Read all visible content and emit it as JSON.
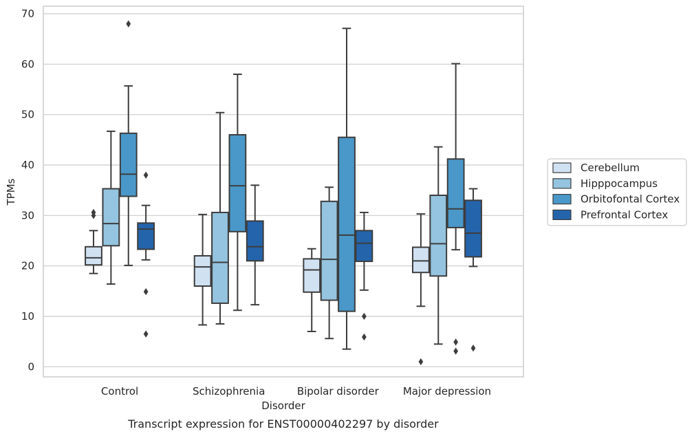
{
  "chart_data": {
    "type": "boxplot",
    "xlabel": "Disorder",
    "ylabel": "TPMs",
    "caption": "Transcript expression for ENST00000402297 by disorder",
    "ylim": [
      -2,
      71.5
    ],
    "yticks": [
      0,
      10,
      20,
      30,
      40,
      50,
      60,
      70
    ],
    "grid": "horizontal",
    "legend_placement": "right",
    "categories": [
      "Control",
      "Schizophrenia",
      "Bipolar disorder",
      "Major depression"
    ],
    "series": [
      {
        "name": "Cerebellum",
        "color": "#d0e1f2",
        "boxes": [
          {
            "whislo": 18.5,
            "q1": 20.2,
            "med": 21.6,
            "q3": 23.8,
            "whishi": 27.0,
            "fliers": [
              30.0,
              30.6
            ]
          },
          {
            "whislo": 8.3,
            "q1": 16.0,
            "med": 19.8,
            "q3": 22.0,
            "whishi": 30.2,
            "fliers": []
          },
          {
            "whislo": 7.0,
            "q1": 14.8,
            "med": 19.2,
            "q3": 21.4,
            "whishi": 23.4,
            "fliers": []
          },
          {
            "whislo": 12.0,
            "q1": 18.7,
            "med": 21.0,
            "q3": 23.7,
            "whishi": 30.3,
            "fliers": [
              1.0
            ]
          }
        ]
      },
      {
        "name": "Hipppocampus",
        "color": "#94c4df",
        "boxes": [
          {
            "whislo": 16.4,
            "q1": 24.0,
            "med": 28.4,
            "q3": 35.3,
            "whishi": 46.7,
            "fliers": []
          },
          {
            "whislo": 8.5,
            "q1": 12.6,
            "med": 20.7,
            "q3": 30.6,
            "whishi": 50.4,
            "fliers": []
          },
          {
            "whislo": 5.6,
            "q1": 13.2,
            "med": 21.3,
            "q3": 32.8,
            "whishi": 35.6,
            "fliers": []
          },
          {
            "whislo": 4.5,
            "q1": 18.0,
            "med": 24.4,
            "q3": 34.0,
            "whishi": 43.6,
            "fliers": []
          }
        ]
      },
      {
        "name": "Orbitofontal Cortex",
        "color": "#4a98c9",
        "boxes": [
          {
            "whislo": 20.1,
            "q1": 33.8,
            "med": 38.2,
            "q3": 46.3,
            "whishi": 55.7,
            "fliers": [
              68.0
            ]
          },
          {
            "whislo": 11.2,
            "q1": 26.8,
            "med": 35.9,
            "q3": 46.0,
            "whishi": 58.0,
            "fliers": []
          },
          {
            "whislo": 3.5,
            "q1": 11.0,
            "med": 26.1,
            "q3": 45.5,
            "whishi": 67.1,
            "fliers": []
          },
          {
            "whislo": 23.2,
            "q1": 27.6,
            "med": 31.3,
            "q3": 41.2,
            "whishi": 60.1,
            "fliers": [
              4.9,
              3.1
            ]
          }
        ]
      },
      {
        "name": "Prefrontal Cortex",
        "color": "#2464ab",
        "boxes": [
          {
            "whislo": 21.2,
            "q1": 23.3,
            "med": 27.3,
            "q3": 28.5,
            "whishi": 32.0,
            "fliers": [
              38.0,
              14.9,
              6.5
            ]
          },
          {
            "whislo": 12.3,
            "q1": 21.0,
            "med": 23.8,
            "q3": 28.9,
            "whishi": 36.0,
            "fliers": []
          },
          {
            "whislo": 15.2,
            "q1": 20.9,
            "med": 24.5,
            "q3": 27.0,
            "whishi": 30.6,
            "fliers": [
              10.0,
              5.9
            ]
          },
          {
            "whislo": 19.9,
            "q1": 21.8,
            "med": 26.5,
            "q3": 33.0,
            "whishi": 35.3,
            "fliers": [
              3.7
            ]
          }
        ]
      }
    ]
  }
}
